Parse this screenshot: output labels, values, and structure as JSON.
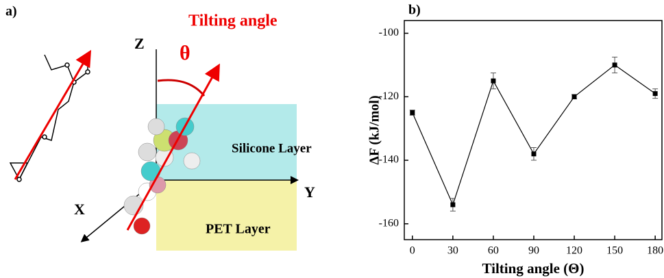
{
  "diagram": {
    "panel_label": "a)",
    "title": "Tilting angle",
    "angle_symbol": "θ",
    "axis_z": "Z",
    "axis_y": "Y",
    "axis_x": "X",
    "upper_layer": "Silicone Layer",
    "lower_layer": "PET Layer"
  },
  "chart_data": {
    "type": "line",
    "panel_label": "b)",
    "x_label": "Tilting angle (Θ)",
    "y_label": "ΔF (kJ/mol)",
    "x": [
      0,
      30,
      60,
      90,
      120,
      150,
      180
    ],
    "values": [
      -125,
      -154,
      -115,
      -138,
      -120,
      -110,
      -119
    ],
    "errors": [
      0.8,
      2,
      2.5,
      2,
      0.7,
      2.5,
      1.5
    ],
    "color": "#000000",
    "xlim": [
      -6,
      185
    ],
    "ylim": [
      -165,
      -96
    ],
    "xticks": [
      0,
      30,
      60,
      90,
      120,
      150,
      180
    ],
    "yticks": [
      -160,
      -140,
      -120,
      -100
    ]
  }
}
